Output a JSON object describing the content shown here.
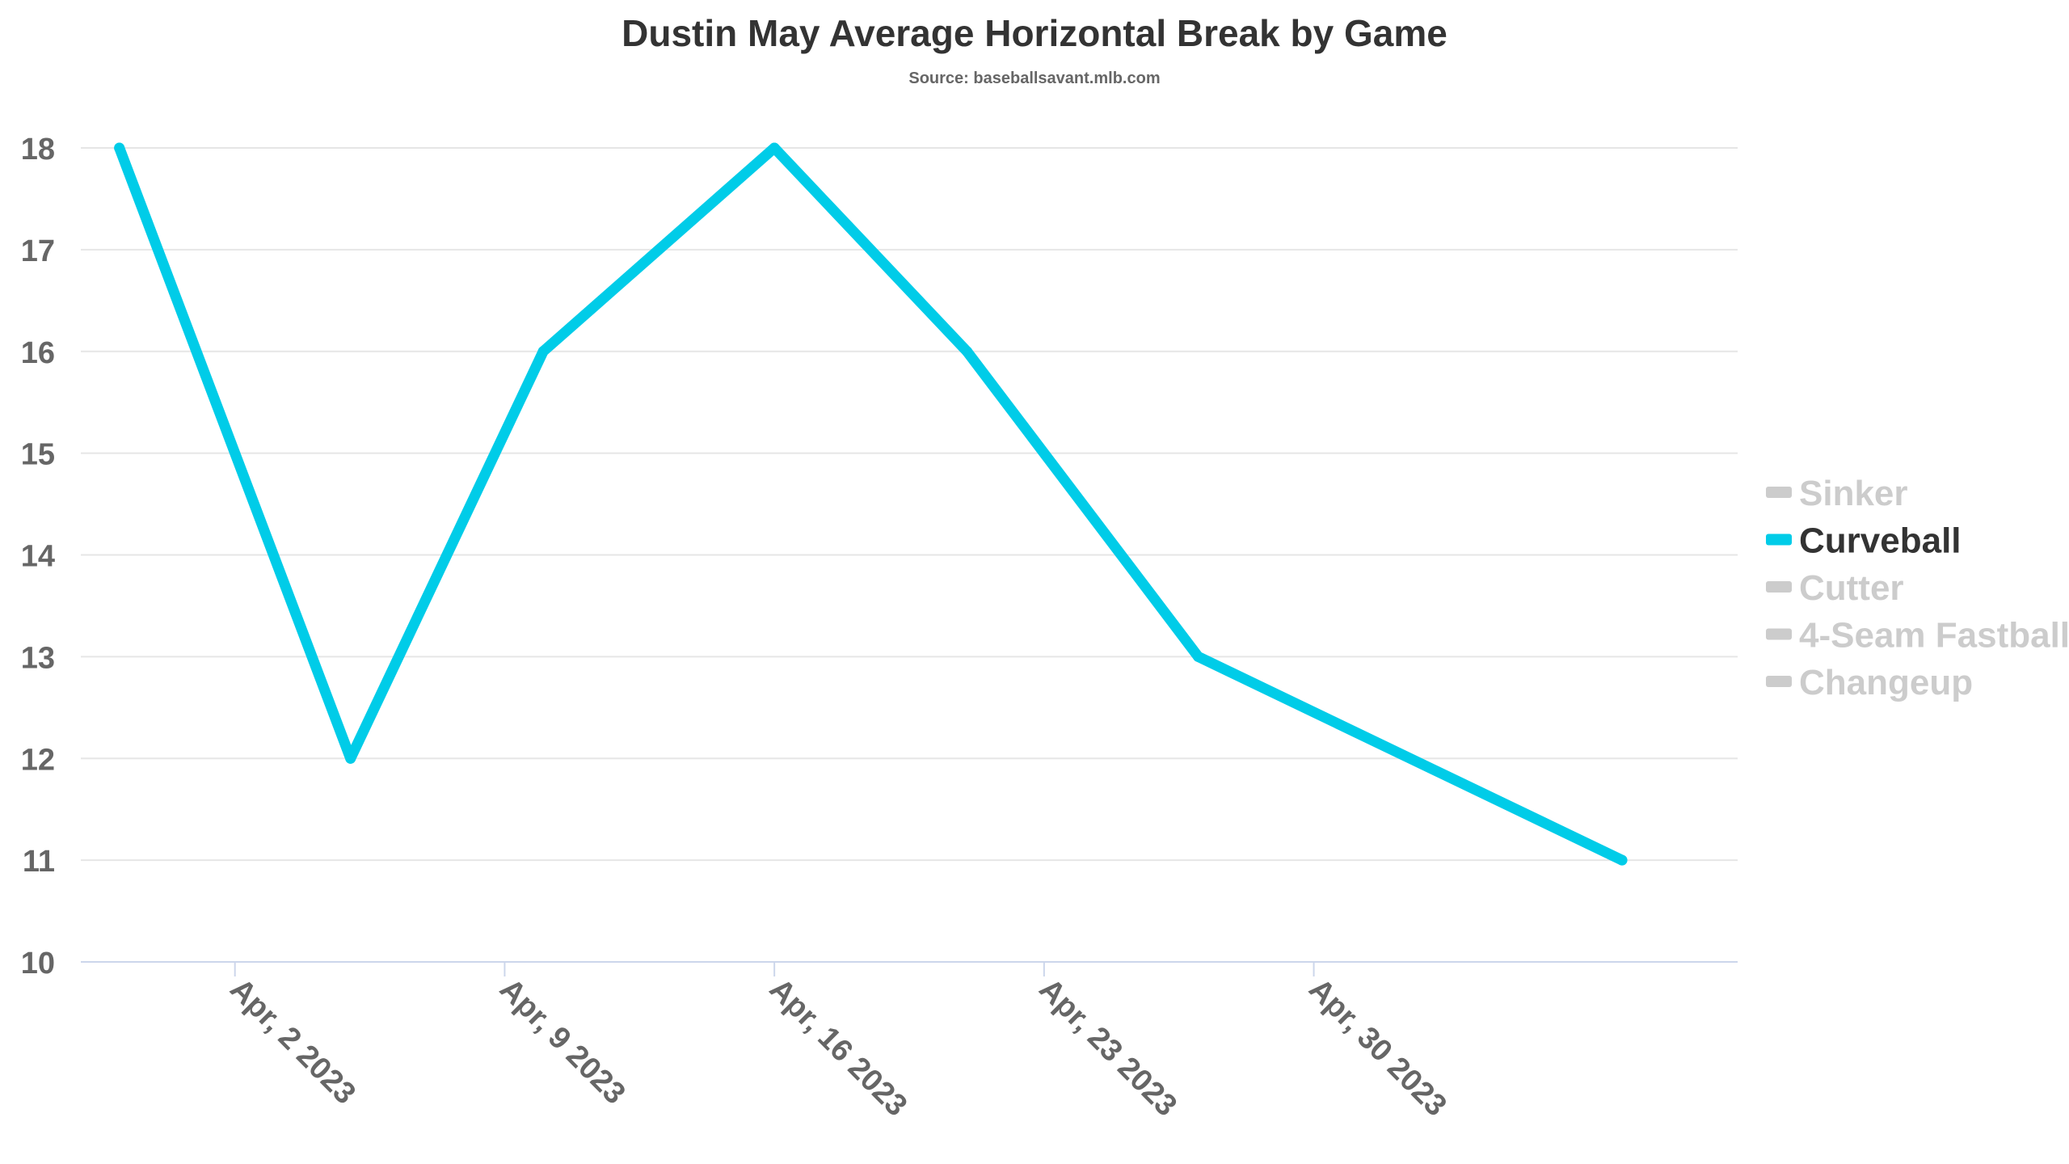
{
  "chart_data": {
    "type": "line",
    "title": "Dustin May Average Horizontal Break by Game",
    "subtitle": "Source: baseballsavant.mlb.com",
    "xlabel": "",
    "ylabel": "",
    "ylim": [
      10,
      18
    ],
    "yticks": [
      "10",
      "11",
      "12",
      "13",
      "14",
      "15",
      "16",
      "17",
      "18"
    ],
    "xlim": [
      "2023-03-29",
      "2023-05-11"
    ],
    "xticks": [
      {
        "date": "2023-04-02",
        "label": "Apr, 2 2023"
      },
      {
        "date": "2023-04-09",
        "label": "Apr, 9 2023"
      },
      {
        "date": "2023-04-16",
        "label": "Apr, 16 2023"
      },
      {
        "date": "2023-04-23",
        "label": "Apr, 23 2023"
      },
      {
        "date": "2023-04-30",
        "label": "Apr, 30 2023"
      }
    ],
    "grid": true,
    "legend_position": "right",
    "active_series": "Curveball",
    "series": [
      {
        "name": "Sinker",
        "visible": false,
        "points": []
      },
      {
        "name": "Curveball",
        "visible": true,
        "points": [
          {
            "x": "2023-03-30",
            "y": 18
          },
          {
            "x": "2023-04-05",
            "y": 12
          },
          {
            "x": "2023-04-10",
            "y": 16
          },
          {
            "x": "2023-04-16",
            "y": 18
          },
          {
            "x": "2023-04-21",
            "y": 16
          },
          {
            "x": "2023-04-27",
            "y": 13
          },
          {
            "x": "2023-05-08",
            "y": 11
          }
        ]
      },
      {
        "name": "Cutter",
        "visible": false,
        "points": []
      },
      {
        "name": "4-Seam Fastball",
        "visible": false,
        "points": []
      },
      {
        "name": "Changeup",
        "visible": false,
        "points": []
      }
    ],
    "colors": {
      "line": "#00CCE8",
      "legend_active_text": "#333333",
      "legend_inactive": "#CCCCCC",
      "grid": "#E6E6E6",
      "axis": "#CCD6EB",
      "tick_text": "#666666"
    }
  }
}
